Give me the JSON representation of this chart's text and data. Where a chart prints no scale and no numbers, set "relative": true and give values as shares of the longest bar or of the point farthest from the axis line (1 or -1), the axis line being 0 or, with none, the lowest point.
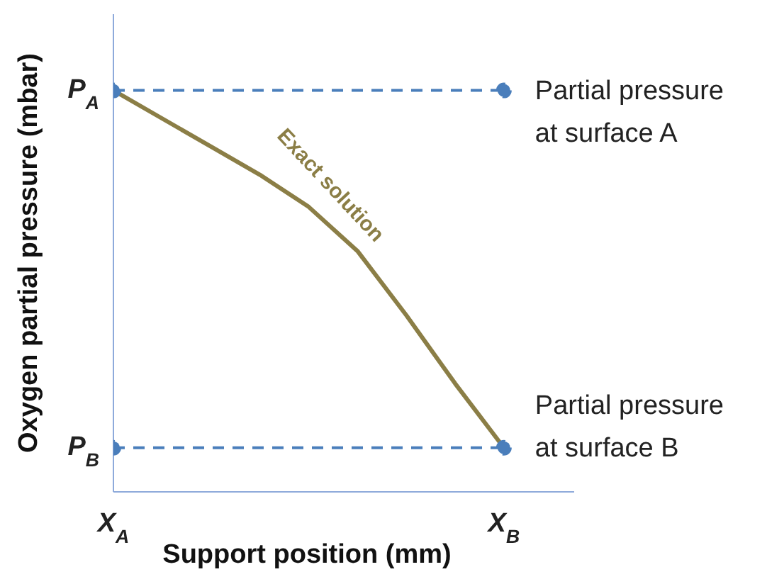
{
  "chart_data": {
    "type": "line",
    "relative": true,
    "xlabel": "Support position (mm)",
    "ylabel": "Oxygen partial pressure (mbar)",
    "categories": [
      "X$_{A}$",
      null,
      null,
      null,
      null,
      null,
      null,
      null,
      "X$_{B}$"
    ],
    "series": [
      {
        "name": "Exact solution",
        "color": "#8b7e46",
        "values": [
          1,
          0.93,
          0.86,
          0.79,
          0.71,
          0.6,
          0.44,
          0.27,
          0.11
        ],
        "marker": "none",
        "line_style": "solid"
      },
      {
        "color": "#4a7ebb",
        "values": [
          1,
          null,
          null,
          null,
          null,
          null,
          null,
          null,
          1
        ],
        "marker": "circle",
        "line_style": "dashed"
      },
      {
        "color": "#4a7ebb",
        "values": [
          0.11,
          null,
          null,
          null,
          null,
          null,
          null,
          null,
          0.11
        ],
        "marker": "circle",
        "line_style": "dashed"
      }
    ],
    "annotations": [
      {
        "text": "P$_{A}$",
        "x": "X$_{A}$",
        "y": 1
      },
      {
        "text": "P$_{B}$",
        "x": "X$_{A}$",
        "y": 0.11
      },
      {
        "text": "Partial pressure at surface A",
        "x": "X$_{B}$",
        "y": 1
      },
      {
        "text": "Partial pressure at surface B",
        "x": "X$_{B}$",
        "y": 0.11
      }
    ],
    "grid": false,
    "legend": false
  }
}
